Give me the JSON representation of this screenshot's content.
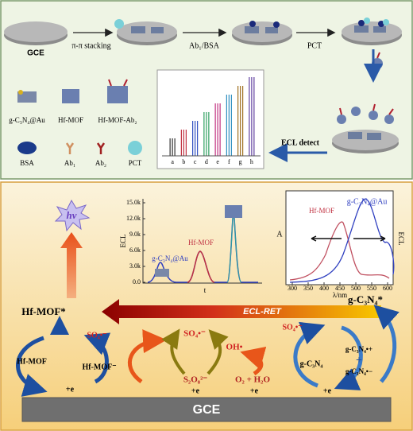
{
  "top_panel": {
    "electrode": "GCE",
    "steps": [
      "π-π stacking",
      "Ab₁/BSA",
      "PCT",
      "ECL detect"
    ],
    "legend": [
      "g-C₃N₄@Au",
      "Hf-MOF",
      "Hf-MOF-Ab₂",
      "BSA",
      "Ab₁",
      "Ab₂",
      "PCT"
    ],
    "inset_labels": [
      "a",
      "b",
      "c",
      "d",
      "e",
      "f",
      "g",
      "h"
    ]
  },
  "bottom_panel": {
    "emission": "hν",
    "ecl_inset": {
      "y_label": "ECL",
      "y_ticks": [
        "15.0k",
        "12.0k",
        "9.0k",
        "6.0k",
        "3.0k",
        "0.0"
      ],
      "x_label": "t",
      "annotations": [
        "g-C₃N₄@Au",
        "Hf-MOF"
      ]
    },
    "spectra_inset": {
      "left_label": "A",
      "right_label": "ECL",
      "x_ticks": [
        "300",
        "350",
        "400",
        "450",
        "500",
        "550",
        "600"
      ],
      "x_label": "λ/nm",
      "annotations": [
        "g-C₃N₄@Au",
        "Hf-MOF"
      ]
    },
    "transfer": "ECL-RET",
    "donor_excited": "Hf-MOF*",
    "acceptor_excited": "g-C₃N₄*",
    "left_cycle": {
      "ground": "Hf-MOF",
      "reduced": "Hf-MOF⁻",
      "radical": "SO₄•⁻",
      "electron": "+e"
    },
    "middle_cycle": {
      "radical": "SO₄•⁻",
      "persulfate": "S₂O₈²⁻",
      "electron_1": "+e",
      "hydroxyl": "OH•",
      "oxygen": "O₂ + H₂O",
      "electron_2": "+e"
    },
    "right_cycle": {
      "radical": "SO₄•⁻",
      "ground": "g-C₃N₄",
      "cation": "g-C₃N₄•+",
      "plus": "+",
      "anion": "g-C₃N₄•−",
      "electron": "+e"
    },
    "electrode": "GCE"
  }
}
